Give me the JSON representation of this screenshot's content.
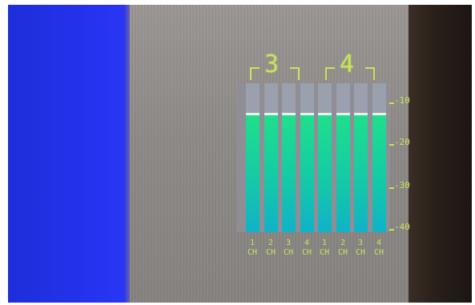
{
  "meter": {
    "groups": [
      {
        "label": "3"
      },
      {
        "label": "4"
      }
    ],
    "channels": [
      {
        "num": "1",
        "tag": "CH",
        "level": 0.8
      },
      {
        "num": "2",
        "tag": "CH",
        "level": 0.8
      },
      {
        "num": "3",
        "tag": "CH",
        "level": 0.8
      },
      {
        "num": "4",
        "tag": "CH",
        "level": 0.8
      },
      {
        "num": "1",
        "tag": "CH",
        "level": 0.8
      },
      {
        "num": "2",
        "tag": "CH",
        "level": 0.8
      },
      {
        "num": "3",
        "tag": "CH",
        "level": 0.8
      },
      {
        "num": "4",
        "tag": "CH",
        "level": 0.8
      }
    ],
    "scale": [
      "-10",
      "-20",
      "-30",
      "-40"
    ]
  },
  "colors": {
    "text": "#c8e35a",
    "bar_fill_top": "#1fe08a",
    "bar_fill_bottom": "#10b2c8",
    "bar_empty": "#9aa0ad",
    "left_panel": "#2433ee"
  }
}
